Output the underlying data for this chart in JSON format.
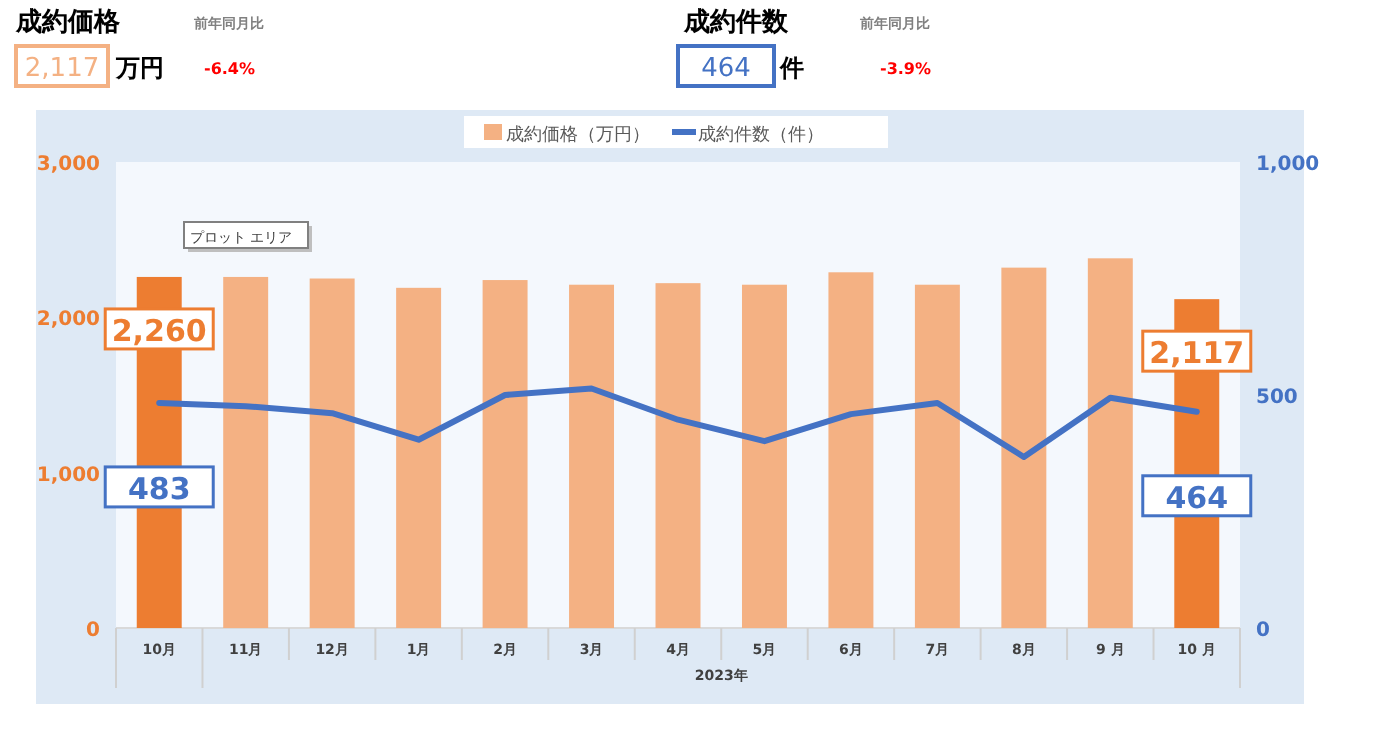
{
  "chart_data": {
    "type": "bar",
    "categories": [
      "10月",
      "11月",
      "12月",
      "1月",
      "2月",
      "3月",
      "4月",
      "5月",
      "6月",
      "7月",
      "8月",
      "9 月",
      "10 月"
    ],
    "xlabel": "2023年",
    "series": [
      {
        "name": "成約価格（万円）",
        "color": "#f4b183",
        "colors": [
          "#ed7d31",
          "#f4b183",
          "#f4b183",
          "#f4b183",
          "#f4b183",
          "#f4b183",
          "#f4b183",
          "#f4b183",
          "#f4b183",
          "#f4b183",
          "#f4b183",
          "#f4b183",
          "#ed7d31"
        ],
        "values": [
          2260,
          2260,
          2250,
          2190,
          2240,
          2210,
          2220,
          2210,
          2290,
          2210,
          2320,
          2380,
          2117
        ],
        "value_labels": [
          "2,260",
          null,
          null,
          null,
          null,
          null,
          null,
          null,
          null,
          null,
          null,
          null,
          "2,117"
        ]
      },
      {
        "name": "成約件数（件）",
        "type": "line",
        "axis": "y2",
        "color": "#4472c4",
        "values": [
          483,
          476,
          461,
          404,
          500,
          514,
          447,
          401,
          459,
          483,
          367,
          494,
          464
        ],
        "value_labels": [
          "483",
          null,
          null,
          null,
          null,
          null,
          null,
          null,
          null,
          null,
          null,
          null,
          "464"
        ]
      }
    ],
    "ylim": [
      0,
      3000
    ],
    "yticks": [
      {
        "value": 0,
        "label": "0"
      },
      {
        "value": 1000,
        "label": "1,000"
      },
      {
        "value": 2000,
        "label": "2,000"
      },
      {
        "value": 3000,
        "label": "3,000"
      }
    ],
    "y2lim": [
      0,
      1000
    ],
    "y2ticks": [
      {
        "value": 0,
        "label": "0"
      },
      {
        "value": 500,
        "label": "500"
      },
      {
        "value": 1000,
        "label": "1,000"
      }
    ],
    "legend": "top",
    "grid": false,
    "annotations": [
      "成約価格",
      "前年同月比",
      "2,117",
      "万円",
      "-6.4%",
      "成約件数",
      "前年同月比",
      "464",
      "件",
      "-3.9%",
      "プロット エリア"
    ]
  }
}
